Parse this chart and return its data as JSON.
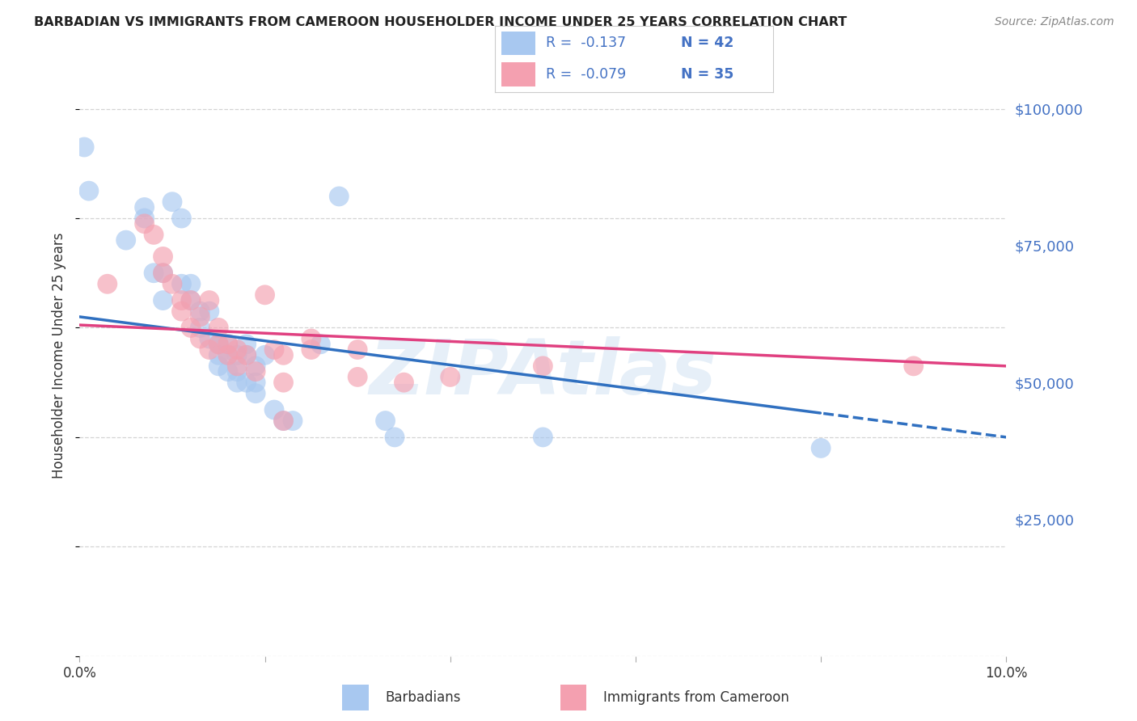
{
  "title": "BARBADIAN VS IMMIGRANTS FROM CAMEROON HOUSEHOLDER INCOME UNDER 25 YEARS CORRELATION CHART",
  "source": "Source: ZipAtlas.com",
  "ylabel": "Householder Income Under 25 years",
  "xlim": [
    0,
    0.1
  ],
  "ylim": [
    0,
    110000
  ],
  "background_color": "#ffffff",
  "grid_color": "#d0d0d0",
  "watermark": "ZIPAtlas",
  "blue_color": "#a8c8f0",
  "pink_color": "#f4a0b0",
  "blue_line_color": "#3070c0",
  "pink_line_color": "#e04080",
  "legend_blue_color": "#a8c8f0",
  "legend_pink_color": "#f4a0b0",
  "blue_scatter": [
    [
      0.0005,
      93000
    ],
    [
      0.001,
      85000
    ],
    [
      0.005,
      76000
    ],
    [
      0.007,
      82000
    ],
    [
      0.007,
      80000
    ],
    [
      0.008,
      70000
    ],
    [
      0.009,
      70000
    ],
    [
      0.009,
      65000
    ],
    [
      0.01,
      83000
    ],
    [
      0.011,
      80000
    ],
    [
      0.011,
      68000
    ],
    [
      0.012,
      68000
    ],
    [
      0.012,
      65000
    ],
    [
      0.013,
      63000
    ],
    [
      0.013,
      60000
    ],
    [
      0.014,
      63000
    ],
    [
      0.014,
      58000
    ],
    [
      0.015,
      57000
    ],
    [
      0.015,
      55000
    ],
    [
      0.015,
      53000
    ],
    [
      0.016,
      57000
    ],
    [
      0.016,
      55000
    ],
    [
      0.016,
      52000
    ],
    [
      0.017,
      55000
    ],
    [
      0.017,
      52000
    ],
    [
      0.017,
      50000
    ],
    [
      0.018,
      57000
    ],
    [
      0.018,
      55000
    ],
    [
      0.018,
      50000
    ],
    [
      0.019,
      53000
    ],
    [
      0.019,
      50000
    ],
    [
      0.019,
      48000
    ],
    [
      0.02,
      55000
    ],
    [
      0.021,
      45000
    ],
    [
      0.022,
      43000
    ],
    [
      0.023,
      43000
    ],
    [
      0.026,
      57000
    ],
    [
      0.028,
      84000
    ],
    [
      0.033,
      43000
    ],
    [
      0.034,
      40000
    ],
    [
      0.05,
      40000
    ],
    [
      0.08,
      38000
    ]
  ],
  "pink_scatter": [
    [
      0.003,
      68000
    ],
    [
      0.007,
      79000
    ],
    [
      0.008,
      77000
    ],
    [
      0.009,
      73000
    ],
    [
      0.009,
      70000
    ],
    [
      0.01,
      68000
    ],
    [
      0.011,
      65000
    ],
    [
      0.011,
      63000
    ],
    [
      0.012,
      65000
    ],
    [
      0.012,
      60000
    ],
    [
      0.013,
      62000
    ],
    [
      0.013,
      58000
    ],
    [
      0.014,
      65000
    ],
    [
      0.014,
      56000
    ],
    [
      0.015,
      60000
    ],
    [
      0.015,
      57000
    ],
    [
      0.016,
      57000
    ],
    [
      0.016,
      55000
    ],
    [
      0.017,
      56000
    ],
    [
      0.017,
      53000
    ],
    [
      0.018,
      55000
    ],
    [
      0.019,
      52000
    ],
    [
      0.02,
      66000
    ],
    [
      0.021,
      56000
    ],
    [
      0.022,
      55000
    ],
    [
      0.022,
      50000
    ],
    [
      0.022,
      43000
    ],
    [
      0.025,
      58000
    ],
    [
      0.025,
      56000
    ],
    [
      0.03,
      56000
    ],
    [
      0.03,
      51000
    ],
    [
      0.035,
      50000
    ],
    [
      0.04,
      51000
    ],
    [
      0.05,
      53000
    ],
    [
      0.09,
      53000
    ]
  ],
  "blue_line_x0": 0.0,
  "blue_line_y0": 62000,
  "blue_line_x1": 0.1,
  "blue_line_y1": 40000,
  "pink_line_x0": 0.0,
  "pink_line_y0": 60500,
  "pink_line_x1": 0.1,
  "pink_line_y1": 53000
}
